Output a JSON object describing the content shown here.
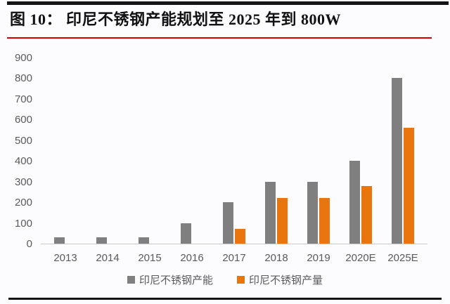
{
  "page": {
    "title": "图 10： 印尼不锈钢产能规划至 2025 年到 800W"
  },
  "chart_data": {
    "type": "bar",
    "title": "图 10： 印尼不锈钢产能规划至 2025 年到 800W",
    "categories": [
      "2013",
      "2014",
      "2015",
      "2016",
      "2017",
      "2018",
      "2019",
      "2020E",
      "2025E"
    ],
    "series": [
      {
        "name": "印尼不锈钢产能",
        "color": "#7f7f7f",
        "values": [
          30,
          30,
          30,
          100,
          200,
          300,
          300,
          400,
          800
        ]
      },
      {
        "name": "印尼不锈钢产量",
        "color": "#e8750e",
        "values": [
          0,
          0,
          0,
          0,
          70,
          220,
          220,
          280,
          560
        ]
      }
    ],
    "xlabel": "",
    "ylabel": "",
    "ylim": [
      0,
      900
    ],
    "yticks": [
      0,
      100,
      200,
      300,
      400,
      500,
      600,
      700,
      800,
      900
    ],
    "grid": false,
    "legend_position": "bottom"
  },
  "colors": {
    "bar_capacity": "#7f7f7f",
    "bar_production": "#e8750e",
    "title_text": "#111111",
    "axis_text": "#5a5a5a",
    "axis_line": "#c9c8cb",
    "red_rule": "#d40000",
    "black_rule": "#141414",
    "background": "#fcfbfd"
  }
}
